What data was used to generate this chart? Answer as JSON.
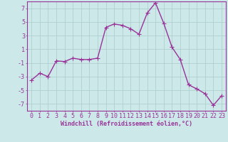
{
  "x": [
    0,
    1,
    2,
    3,
    4,
    5,
    6,
    7,
    8,
    9,
    10,
    11,
    12,
    13,
    14,
    15,
    16,
    17,
    18,
    19,
    20,
    21,
    22,
    23
  ],
  "y": [
    -3.5,
    -2.5,
    -3.0,
    -0.7,
    -0.8,
    -0.3,
    -0.5,
    -0.5,
    -0.3,
    4.2,
    4.7,
    4.5,
    4.0,
    3.2,
    6.3,
    7.8,
    4.8,
    1.3,
    -0.5,
    -4.2,
    -4.8,
    -5.5,
    -7.2,
    -5.8
  ],
  "line_color": "#993399",
  "marker": "+",
  "marker_size": 4,
  "linewidth": 1.0,
  "bg_color": "#cce8e8",
  "grid_color": "#aacccc",
  "xlabel": "Windchill (Refroidissement éolien,°C)",
  "xlabel_color": "#993399",
  "tick_color": "#993399",
  "ylim": [
    -8,
    8
  ],
  "xlim": [
    -0.5,
    23.5
  ],
  "yticks": [
    -7,
    -5,
    -3,
    -1,
    1,
    3,
    5,
    7
  ],
  "xticks": [
    0,
    1,
    2,
    3,
    4,
    5,
    6,
    7,
    8,
    9,
    10,
    11,
    12,
    13,
    14,
    15,
    16,
    17,
    18,
    19,
    20,
    21,
    22,
    23
  ],
  "grid_linewidth": 0.5,
  "label_fontsize": 6,
  "tick_fontsize": 6
}
